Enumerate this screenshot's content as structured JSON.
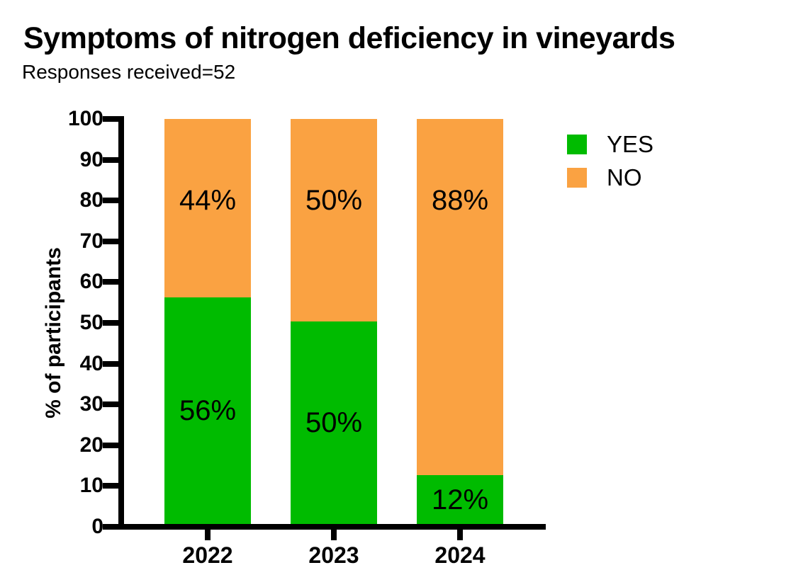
{
  "chart_data": {
    "type": "bar",
    "stacked": true,
    "title": "Symptoms of nitrogen deficiency in vineyards",
    "subtitle": "Responses received=52",
    "xlabel": "",
    "ylabel": "% of participants",
    "categories": [
      "2022",
      "2023",
      "2024"
    ],
    "series": [
      {
        "name": "YES",
        "color": "#00BB00",
        "values": [
          56,
          50,
          12
        ],
        "labels": [
          "56%",
          "50%",
          "12%"
        ]
      },
      {
        "name": "NO",
        "color": "#FAA242",
        "values": [
          44,
          50,
          88
        ],
        "labels": [
          "44%",
          "50%",
          "88%"
        ]
      }
    ],
    "ylim": [
      0,
      100
    ],
    "yticks": [
      0,
      10,
      20,
      30,
      40,
      50,
      60,
      70,
      80,
      90,
      100
    ],
    "grid": false,
    "legend_position": "top-right",
    "legend_entries": [
      "YES",
      "NO"
    ]
  },
  "colors": {
    "axis": "#000000",
    "text": "#000000",
    "background": "#FFFFFF"
  }
}
